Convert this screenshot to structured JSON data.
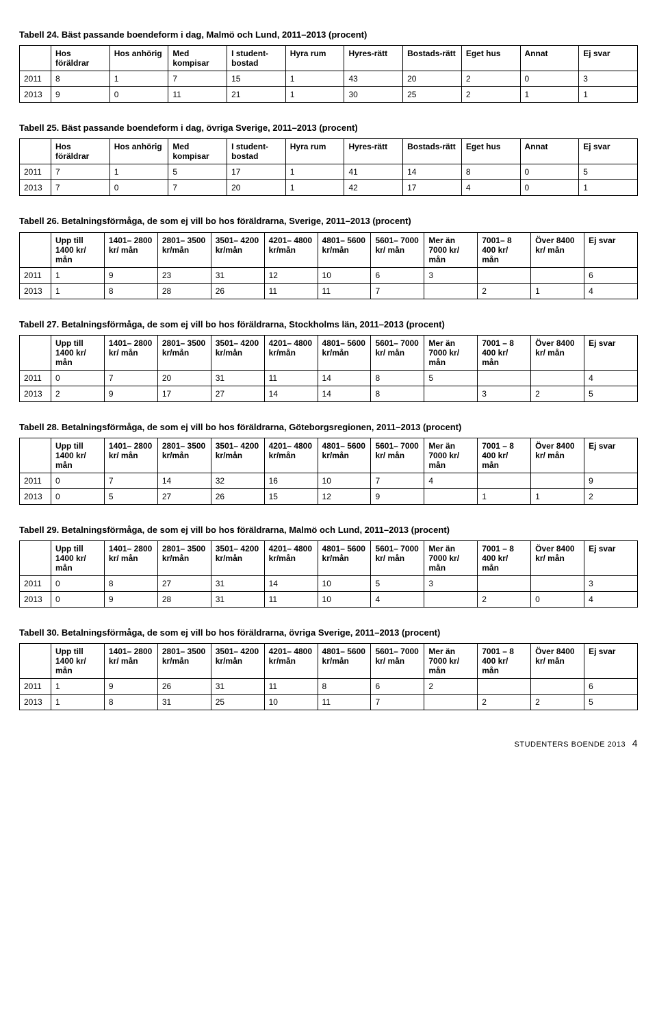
{
  "tables_10col": [
    {
      "title": "Tabell 24. Bäst passande boendeform i dag, Malmö och Lund, 2011–2013 (procent)",
      "headers": [
        "",
        "Hos föräldrar",
        "Hos anhörig",
        "Med kompisar",
        "I student-bostad",
        "Hyra rum",
        "Hyres-rätt",
        "Bostads-rätt",
        "Eget hus",
        "Annat",
        "Ej svar"
      ],
      "rows": [
        [
          "2011",
          "8",
          "1",
          "7",
          "15",
          "1",
          "43",
          "20",
          "2",
          "0",
          "3"
        ],
        [
          "2013",
          "9",
          "0",
          "11",
          "21",
          "1",
          "30",
          "25",
          "2",
          "1",
          "1"
        ]
      ]
    },
    {
      "title": "Tabell 25. Bäst passande boendeform i dag, övriga Sverige, 2011–2013 (procent)",
      "headers": [
        "",
        "Hos föräldrar",
        "Hos anhörig",
        "Med kompisar",
        "I student-bostad",
        "Hyra rum",
        "Hyres-rätt",
        "Bostads-rätt",
        "Eget hus",
        "Annat",
        "Ej svar"
      ],
      "rows": [
        [
          "2011",
          "7",
          "1",
          "5",
          "17",
          "1",
          "41",
          "14",
          "8",
          "0",
          "5"
        ],
        [
          "2013",
          "7",
          "0",
          "7",
          "20",
          "1",
          "42",
          "17",
          "4",
          "0",
          "1"
        ]
      ]
    }
  ],
  "tables_11col": [
    {
      "title": "Tabell 26. Betalningsförmåga, de som ej vill bo hos föräldrarna, Sverige, 2011–2013 (procent)",
      "headers": [
        "",
        "Upp till 1400 kr/ mån",
        "1401– 2800 kr/ mån",
        "2801– 3500 kr/mån",
        "3501– 4200 kr/mån",
        "4201– 4800 kr/mån",
        "4801– 5600 kr/mån",
        "5601– 7000 kr/ mån",
        "Mer än 7000 kr/ mån",
        "7001– 8 400 kr/ mån",
        "Över 8400 kr/ mån",
        "Ej svar"
      ],
      "rows": [
        [
          "2011",
          "1",
          "9",
          "23",
          "31",
          "12",
          "10",
          "6",
          "3",
          "",
          "",
          "6"
        ],
        [
          "2013",
          "1",
          "8",
          "28",
          "26",
          "11",
          "11",
          "7",
          "",
          "2",
          "1",
          "4"
        ]
      ]
    },
    {
      "title": "Tabell 27. Betalningsförmåga, de som ej vill bo hos föräldrarna, Stockholms län, 2011–2013 (procent)",
      "headers": [
        "",
        "Upp till 1400 kr/ mån",
        "1401– 2800 kr/ mån",
        "2801– 3500 kr/mån",
        "3501– 4200 kr/mån",
        "4201– 4800 kr/mån",
        "4801– 5600 kr/mån",
        "5601– 7000 kr/ mån",
        "Mer än 7000 kr/ mån",
        "7001 – 8 400 kr/ mån",
        "Över 8400 kr/ mån",
        "Ej svar"
      ],
      "rows": [
        [
          "2011",
          "0",
          "7",
          "20",
          "31",
          "11",
          "14",
          "8",
          "5",
          "",
          "",
          "4"
        ],
        [
          "2013",
          "2",
          "9",
          "17",
          "27",
          "14",
          "14",
          "8",
          "",
          "3",
          "2",
          "5"
        ]
      ]
    },
    {
      "title": "Tabell 28. Betalningsförmåga, de som ej vill bo hos föräldrarna, Göteborgsregionen, 2011–2013 (procent)",
      "headers": [
        "",
        "Upp till 1400 kr/ mån",
        "1401– 2800 kr/ mån",
        "2801– 3500 kr/mån",
        "3501– 4200 kr/mån",
        "4201– 4800 kr/mån",
        "4801– 5600 kr/mån",
        "5601– 7000 kr/ mån",
        "Mer än 7000 kr/ mån",
        "7001 – 8 400 kr/ mån",
        "Över 8400 kr/ mån",
        "Ej svar"
      ],
      "rows": [
        [
          "2011",
          "0",
          "7",
          "14",
          "32",
          "16",
          "10",
          "7",
          "4",
          "",
          "",
          "9"
        ],
        [
          "2013",
          "0",
          "5",
          "27",
          "26",
          "15",
          "12",
          "9",
          "",
          "1",
          "1",
          "2"
        ]
      ]
    },
    {
      "title": "Tabell 29. Betalningsförmåga, de som ej vill bo hos föräldrarna, Malmö och Lund, 2011–2013 (procent)",
      "headers": [
        "",
        "Upp till 1400 kr/ mån",
        "1401– 2800 kr/ mån",
        "2801– 3500 kr/mån",
        "3501– 4200 kr/mån",
        "4201– 4800 kr/mån",
        "4801– 5600 kr/mån",
        "5601– 7000 kr/ mån",
        "Mer än 7000 kr/ mån",
        "7001 – 8 400 kr/ mån",
        "Över 8400 kr/ mån",
        "Ej svar"
      ],
      "rows": [
        [
          "2011",
          "0",
          "8",
          "27",
          "31",
          "14",
          "10",
          "5",
          "3",
          "",
          "",
          "3"
        ],
        [
          "2013",
          "0",
          "9",
          "28",
          "31",
          "11",
          "10",
          "4",
          "",
          "2",
          "0",
          "4"
        ]
      ]
    },
    {
      "title": "Tabell 30. Betalningsförmåga, de som ej vill bo hos föräldrarna, övriga Sverige, 2011–2013 (procent)",
      "headers": [
        "",
        "Upp till 1400 kr/ mån",
        "1401– 2800 kr/ mån",
        "2801– 3500 kr/mån",
        "3501– 4200 kr/mån",
        "4201– 4800 kr/mån",
        "4801– 5600 kr/mån",
        "5601– 7000 kr/ mån",
        "Mer än 7000 kr/ mån",
        "7001 – 8 400 kr/ mån",
        "Över 8400 kr/ mån",
        "Ej svar"
      ],
      "rows": [
        [
          "2011",
          "1",
          "9",
          "26",
          "31",
          "11",
          "8",
          "6",
          "2",
          "",
          "",
          "6"
        ],
        [
          "2013",
          "1",
          "8",
          "31",
          "25",
          "10",
          "11",
          "7",
          "",
          "2",
          "2",
          "5"
        ]
      ]
    }
  ],
  "footer": {
    "text": "STUDENTERS BOENDE 2013",
    "page": "4"
  }
}
